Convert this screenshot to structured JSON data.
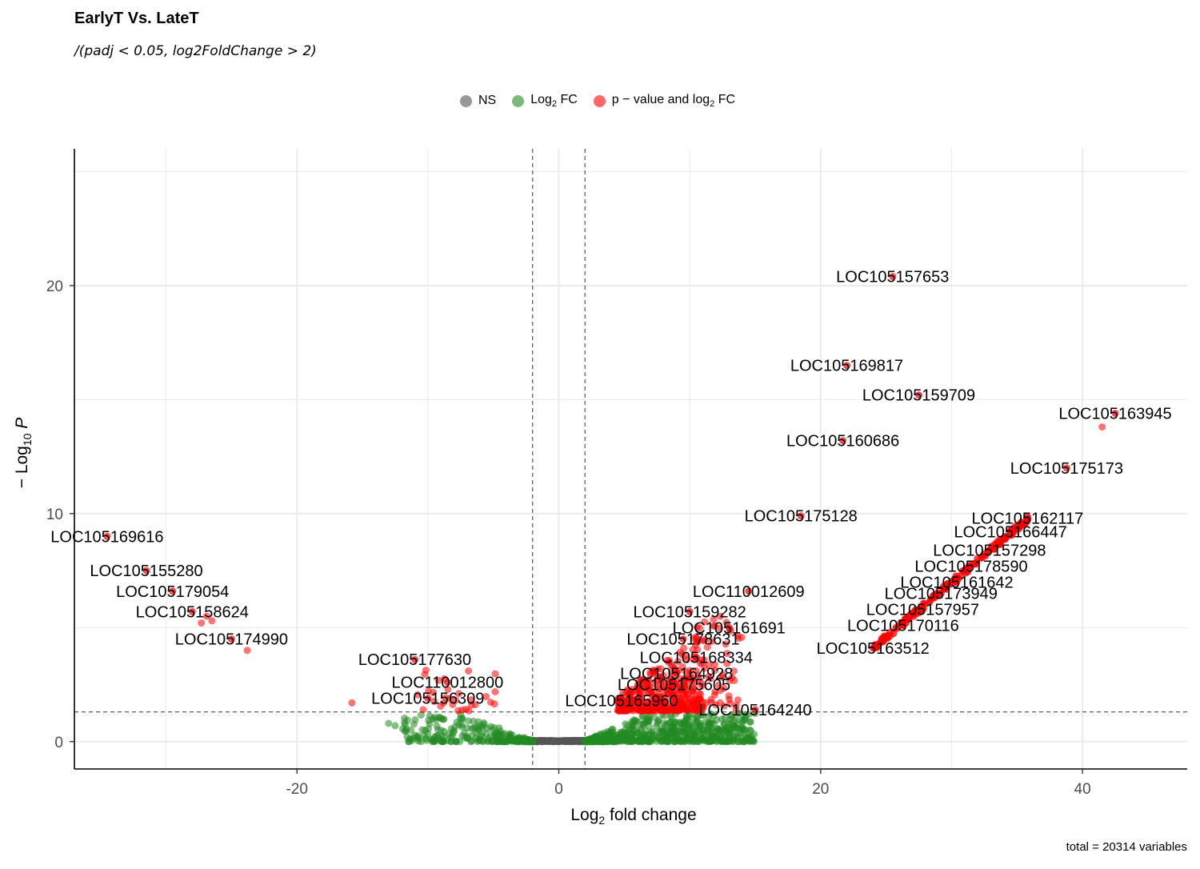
{
  "chart_data": {
    "type": "scatter",
    "title": "EarlyT Vs. LateT",
    "subtitle": "/(padj < 0.05, log2FoldChange > 2)",
    "caption": "total = 20314 variables",
    "xlabel": "Log2 fold change",
    "ylabel": "- Log10 P",
    "xlim": [
      -37,
      48
    ],
    "ylim": [
      -1.2,
      26
    ],
    "x_ticks": [
      "-20",
      "0",
      "20",
      "40"
    ],
    "x_tick_values": [
      -20,
      0,
      20,
      40
    ],
    "y_ticks": [
      "0",
      "10",
      "20"
    ],
    "y_tick_values": [
      0,
      10,
      20
    ],
    "grid": true,
    "legend_position": "top",
    "fc_cutoff": 2,
    "p_cutoff_log10": 1.3,
    "legend": [
      {
        "key": "NS",
        "label": "NS",
        "sub": "",
        "after": "",
        "color": "#555555"
      },
      {
        "key": "FC",
        "label": "Log",
        "sub": "2",
        "after": " FC",
        "color": "#228b22"
      },
      {
        "key": "P_FC",
        "label": "p − value and log",
        "sub": "2",
        "after": " FC",
        "color": "#ff0000"
      }
    ],
    "series": [
      {
        "name": "NS",
        "color": "#555555"
      },
      {
        "name": "Log2 FC",
        "color": "#228b22"
      },
      {
        "name": "p - value and log2 FC",
        "color": "#ff0000"
      }
    ],
    "labeled_points": [
      {
        "gene": "LOC105157653",
        "x": 25.5,
        "y": 20.4
      },
      {
        "gene": "LOC105169817",
        "x": 22.0,
        "y": 16.5
      },
      {
        "gene": "LOC105159709",
        "x": 27.5,
        "y": 15.2
      },
      {
        "gene": "LOC105163945",
        "x": 42.5,
        "y": 14.4
      },
      {
        "gene": "LOC105160686",
        "x": 21.7,
        "y": 13.2
      },
      {
        "gene": "LOC105175173",
        "x": 38.8,
        "y": 12.0
      },
      {
        "gene": "LOC105175128",
        "x": 18.5,
        "y": 9.9
      },
      {
        "gene": "LOC105162117",
        "x": 35.8,
        "y": 9.8
      },
      {
        "gene": "LOC105166447",
        "x": 34.5,
        "y": 9.2
      },
      {
        "gene": "LOC105157298",
        "x": 32.9,
        "y": 8.4
      },
      {
        "gene": "LOC105178590",
        "x": 31.5,
        "y": 7.7
      },
      {
        "gene": "LOC105161642",
        "x": 30.4,
        "y": 7.0
      },
      {
        "gene": "LOC105173949",
        "x": 29.2,
        "y": 6.5
      },
      {
        "gene": "LOC105157957",
        "x": 27.8,
        "y": 5.8
      },
      {
        "gene": "LOC105170116",
        "x": 26.3,
        "y": 5.1
      },
      {
        "gene": "LOC105163512",
        "x": 24.0,
        "y": 4.1
      },
      {
        "gene": "LOC105169616",
        "x": -34.5,
        "y": 9.0
      },
      {
        "gene": "LOC105155280",
        "x": -31.5,
        "y": 7.5
      },
      {
        "gene": "LOC105179054",
        "x": -29.5,
        "y": 6.6
      },
      {
        "gene": "LOC105158624",
        "x": -28.0,
        "y": 5.7
      },
      {
        "gene": "LOC105174990",
        "x": -25.0,
        "y": 4.5
      },
      {
        "gene": "LOC110012609",
        "x": 14.5,
        "y": 6.6
      },
      {
        "gene": "LOC105159282",
        "x": 10.0,
        "y": 5.7
      },
      {
        "gene": "LOC105161691",
        "x": 13.0,
        "y": 5.0
      },
      {
        "gene": "LOC105178631",
        "x": 9.5,
        "y": 4.5
      },
      {
        "gene": "LOC105168334",
        "x": 10.5,
        "y": 3.7
      },
      {
        "gene": "LOC105164928",
        "x": 9.0,
        "y": 3.0
      },
      {
        "gene": "LOC105175605",
        "x": 8.8,
        "y": 2.5
      },
      {
        "gene": "LOC105165960",
        "x": 4.8,
        "y": 1.8
      },
      {
        "gene": "LOC105164240",
        "x": 15.0,
        "y": 1.4
      },
      {
        "gene": "LOC105177630",
        "x": -11.0,
        "y": 3.6
      },
      {
        "gene": "LOC110012800",
        "x": -8.5,
        "y": 2.6
      },
      {
        "gene": "LOC105156309",
        "x": -10.0,
        "y": 1.9
      }
    ]
  }
}
